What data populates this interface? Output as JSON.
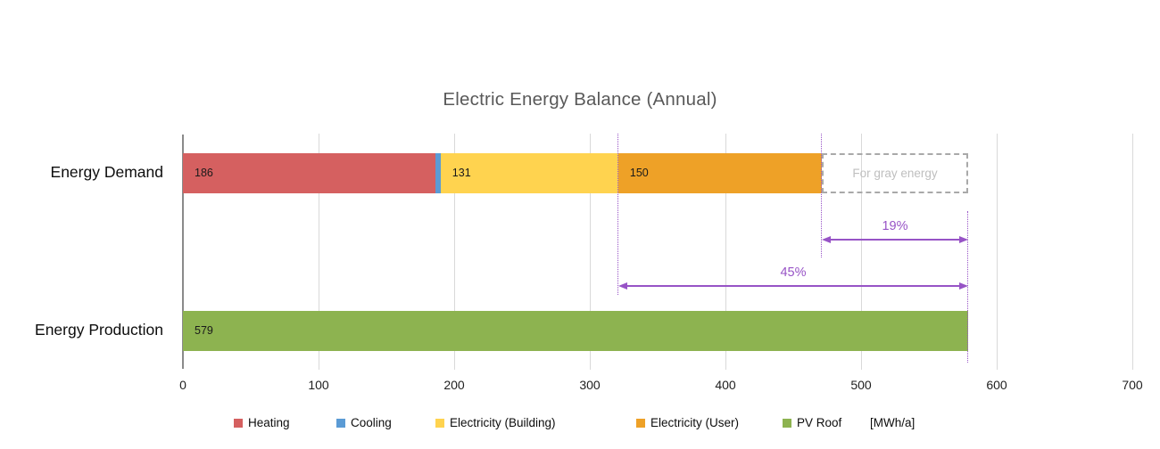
{
  "title": "Electric Energy Balance (Annual)",
  "colors": {
    "heating": "#D56060",
    "cooling": "#5B9BD5",
    "electricity_building": "#FFD34F",
    "electricity_user": "#EEA127",
    "pv_roof": "#8DB350",
    "annotation_purple": "#9753C6",
    "gridline": "#D9D9D9",
    "axis_line": "#8A8A8A",
    "gray_box_border": "#A9A9A9",
    "gray_box_text": "#BFBFBF",
    "title_text": "#595959"
  },
  "chart_data": {
    "type": "bar",
    "orientation": "horizontal",
    "title": "Electric Energy Balance (Annual)",
    "unit_label": "[MWh/a]",
    "categories": [
      "Energy Demand",
      "Energy Production"
    ],
    "x_axis": {
      "min": 0,
      "max": 700,
      "tick_interval": 100,
      "ticks": [
        0,
        100,
        200,
        300,
        400,
        500,
        600,
        700
      ]
    },
    "grid": true,
    "series": [
      {
        "name": "Heating",
        "category": "Energy Demand",
        "value": 186,
        "label": "186",
        "color": "#D56060"
      },
      {
        "name": "Cooling",
        "category": "Energy Demand",
        "value": 4,
        "label": "",
        "color": "#5B9BD5"
      },
      {
        "name": "Electricity (Building)",
        "category": "Energy Demand",
        "value": 131,
        "label": "131",
        "color": "#FFD34F"
      },
      {
        "name": "Electricity (User)",
        "category": "Energy Demand",
        "value": 150,
        "label": "150",
        "color": "#EEA127"
      },
      {
        "name": "PV Roof",
        "category": "Energy Production",
        "value": 579,
        "label": "579",
        "color": "#8DB350"
      }
    ],
    "gray_box": {
      "label": "For gray energy",
      "from": 471,
      "to": 579
    },
    "guide_lines": [
      {
        "x": 321
      },
      {
        "x": 471
      },
      {
        "x": 579
      }
    ],
    "annotations": [
      {
        "label": "19%",
        "from": 471,
        "to": 579
      },
      {
        "label": "45%",
        "from": 321,
        "to": 579
      }
    ],
    "legend_position": "bottom"
  },
  "legend": {
    "items": [
      {
        "label": "Heating",
        "color": "#D56060"
      },
      {
        "label": "Cooling",
        "color": "#5B9BD5"
      },
      {
        "label": "Electricity (Building)",
        "color": "#FFD34F"
      },
      {
        "label": "Electricity (User)",
        "color": "#EEA127"
      },
      {
        "label": "PV Roof",
        "color": "#8DB350"
      },
      {
        "label": "[MWh/a]",
        "color": null
      }
    ]
  }
}
